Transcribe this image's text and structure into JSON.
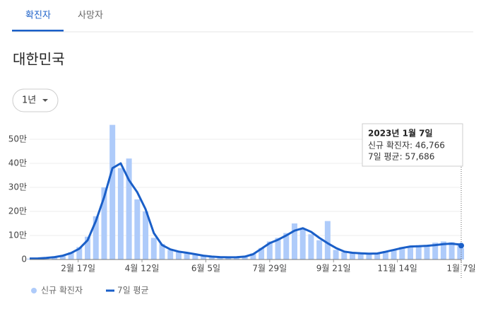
{
  "tabs": [
    "확진자",
    "사망자"
  ],
  "heading": "대한민국",
  "range_selector": "1년",
  "chart_data": {
    "type": "bar",
    "x": [
      0,
      7,
      14,
      21,
      28,
      35,
      42,
      49,
      56,
      63,
      70,
      77,
      84,
      91,
      98,
      105,
      112,
      119,
      126,
      133,
      140,
      147,
      154,
      161,
      168,
      175,
      182,
      189,
      196,
      203,
      210,
      217,
      224,
      231,
      238,
      245,
      252,
      259,
      266,
      273,
      280,
      287,
      294,
      301,
      308,
      315,
      322,
      329,
      336,
      343,
      350,
      357,
      364,
      365
    ],
    "xlim": [
      0,
      365
    ],
    "xticks": [
      {
        "value": 41,
        "label": "2월 17일"
      },
      {
        "value": 95,
        "label": "4월 12일"
      },
      {
        "value": 149,
        "label": "6월 5일"
      },
      {
        "value": 203,
        "label": "7월 29일"
      },
      {
        "value": 257,
        "label": "9월 21일"
      },
      {
        "value": 311,
        "label": "11월 14일"
      },
      {
        "value": 365,
        "label": "1월 7일"
      }
    ],
    "ylim": [
      0,
      600000
    ],
    "yticks": [
      0,
      {
        "value": 100000,
        "label": "10만"
      },
      {
        "value": 200000,
        "label": "20만"
      },
      {
        "value": 300000,
        "label": "30만"
      },
      {
        "value": 400000,
        "label": "40만"
      },
      {
        "value": 500000,
        "label": "50만"
      }
    ],
    "grid": true,
    "series": [
      {
        "name": "신규 확진자",
        "type": "bar",
        "color": "#aecbfa",
        "values": [
          3500,
          4200,
          7000,
          11000,
          18000,
          30000,
          52000,
          95000,
          180000,
          300000,
          560000,
          380000,
          420000,
          250000,
          200000,
          90000,
          65000,
          40000,
          32000,
          26000,
          20000,
          15000,
          11000,
          9500,
          8500,
          10000,
          13000,
          25000,
          48000,
          75000,
          90000,
          110000,
          150000,
          125000,
          105000,
          80000,
          160000,
          40000,
          30000,
          27000,
          24000,
          23000,
          27000,
          35000,
          42000,
          52000,
          55000,
          60000,
          58000,
          70000,
          75000,
          72000,
          68000,
          46766
        ]
      },
      {
        "name": "7일 평균",
        "type": "line",
        "color": "#1a5fc8",
        "values": [
          4000,
          4500,
          6500,
          10000,
          16000,
          27000,
          45000,
          80000,
          160000,
          260000,
          380000,
          400000,
          330000,
          280000,
          210000,
          110000,
          60000,
          42000,
          33000,
          28000,
          22000,
          16000,
          12000,
          10000,
          9000,
          9500,
          12000,
          22000,
          45000,
          68000,
          82000,
          100000,
          120000,
          130000,
          115000,
          90000,
          68000,
          48000,
          33000,
          28000,
          26000,
          24000,
          25000,
          32000,
          40000,
          48000,
          54000,
          55000,
          57000,
          60000,
          64000,
          66000,
          62000,
          57686
        ]
      }
    ],
    "tooltip": {
      "title": "2023년 1월 7일",
      "lines": [
        "신규 확진자: 46,766",
        "7일 평균: 57,686"
      ]
    }
  }
}
